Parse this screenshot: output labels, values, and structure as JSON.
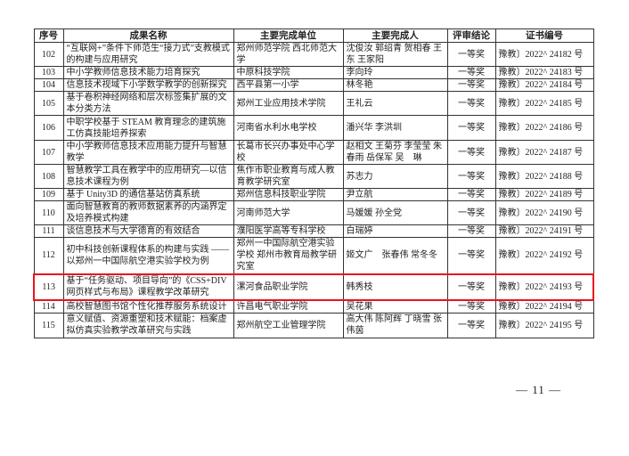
{
  "table": {
    "headers": [
      "序号",
      "成果名称",
      "主要完成单位",
      "主要完成人",
      "评审结论",
      "证书编号"
    ],
    "highlight_color": "#e8141b",
    "highlighted_row": "113",
    "rows": [
      {
        "no": "102",
        "title": "“互联网+”条件下师范生“接力式”支教模式的构建与应用研究",
        "unit": "郑州师范学院 西北师范大学",
        "people": "沈俊汝 郭绍青 贺相春 王　东 王家阳",
        "result": "一等奖",
        "cert": "豫教〕2022^ 24182 号"
      },
      {
        "no": "103",
        "title": "中小学教师信息技术能力培育探究",
        "unit": "中原科技学院",
        "people": "李向玲",
        "result": "一等奖",
        "cert": "豫教〕2022^ 24183 号"
      },
      {
        "no": "104",
        "title": "信息技术视域下小学数学教学的创新探究",
        "unit": "西平县第一小学",
        "people": "林冬艳",
        "result": "一等奖",
        "cert": "豫教〕2022^ 24184 号"
      },
      {
        "no": "105",
        "title": "基于卷积神经网络和层次标签集扩展的文本分类方法",
        "unit": "郑州工业应用技术学院",
        "people": "王礼云",
        "result": "一等奖",
        "cert": "豫教〕2022^ 24185 号"
      },
      {
        "no": "106",
        "title": "中职学校基于 STEAM 教育理念的建筑施工仿真技能培养探索",
        "unit": "河南省水利水电学校",
        "people": "潘兴华 李洪圳",
        "result": "一等奖",
        "cert": "豫教〕2022^ 24186 号"
      },
      {
        "no": "107",
        "title": "中小学教师信息技术应用能力提升与智慧教学",
        "unit": "长葛市长兴办事处中心学校",
        "people": "赵相文 王菊芬 李莹莹 朱春雨 岳保军 吴　琳",
        "result": "一等奖",
        "cert": "豫教〕2022^ 24187 号"
      },
      {
        "no": "108",
        "title": "智慧教学工具在教学中的应用研究—以信息技术课程为例",
        "unit": "焦作市职业教育与成人教育教学研究室",
        "people": "苏志力",
        "result": "一等奖",
        "cert": "豫教〕2022^ 24188 号"
      },
      {
        "no": "109",
        "title": "基于 Unity3D 的通信基站仿真系统",
        "unit": "郑州信息科技职业学院",
        "people": "尹立航",
        "result": "一等奖",
        "cert": "豫教〕2022^ 24189 号"
      },
      {
        "no": "110",
        "title": "面向智慧教育的教师数据素养的内涵界定及培养模式构建",
        "unit": "河南师范大学",
        "people": "马媛媛 孙全党",
        "result": "一等奖",
        "cert": "豫教〕2022^ 24190 号"
      },
      {
        "no": "111",
        "title": "谈信息技术与大学德育的有效结合",
        "unit": "濮阳医学高等专科学校",
        "people": "白瑞婷",
        "result": "一等奖",
        "cert": "豫教〕2022^ 24191 号"
      },
      {
        "no": "112",
        "title": "初中科技创新课程体系的构建与实践 ——以郑州一中国际航空港实验学校为例",
        "unit": "郑州一中国际航空港实验学校 郑州市教育局教学研究室",
        "people": "姬文广　张春伟 常冬冬",
        "result": "一等奖",
        "cert": "豫教〕2022^ 24192 号"
      },
      {
        "no": "113",
        "title": "基于“任务驱动、项目导向”的《CSS+DIV网页样式与布局》课程教学改革研究",
        "unit": "漯河食品职业学院",
        "people": "韩秀枝",
        "result": "一等奖",
        "cert": "豫教〕2022^ 24193 号"
      },
      {
        "no": "114",
        "title": "高校智慧图书馆个性化推荐服务系统设计",
        "unit": "许昌电气职业学院",
        "people": "吴花果",
        "result": "一等奖",
        "cert": "豫教〕2022^ 24194 号"
      },
      {
        "no": "115",
        "title": "意义赋值、资源重塑和技术赋能：档案虚拟仿真实验教学改革研究与实践",
        "unit": "郑州航空工业管理学院",
        "people": "高大伟 陈阿辉 丁晓雪 张伟茵",
        "result": "一等奖",
        "cert": "豫教〕2022^ 24195 号"
      }
    ]
  },
  "footer": {
    "page_number": "— 11 —"
  }
}
